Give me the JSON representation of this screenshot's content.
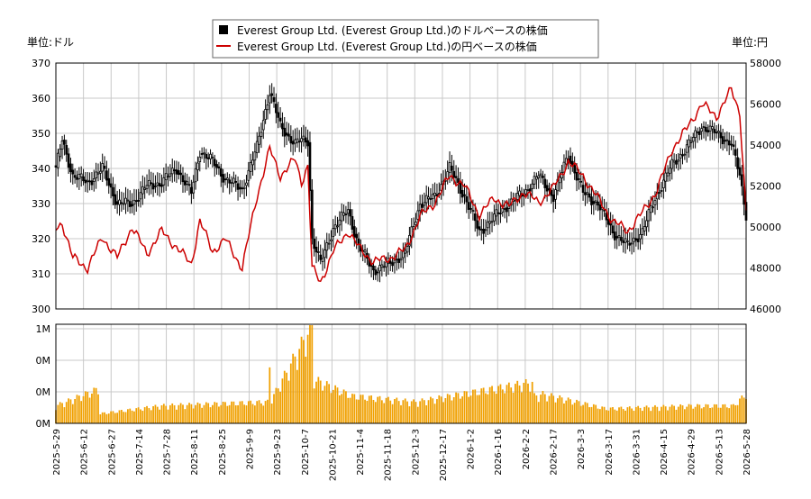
{
  "chart_data": {
    "type": "candlestick-line-bar",
    "legend": {
      "placement": "top-center",
      "entries": [
        {
          "label": "Everest Group Ltd. (Everest Group Ltd.)のドルベースの株価",
          "marker": "square",
          "color": "#000000"
        },
        {
          "label": "Everest Group Ltd. (Everest Group Ltd.)の円ベースの株価",
          "marker": "line",
          "color": "#cc0000"
        }
      ]
    },
    "left_axis": {
      "unit_label": "単位:ドル",
      "ylim": [
        300,
        370
      ],
      "ticks": [
        300,
        310,
        320,
        330,
        340,
        350,
        360,
        370
      ]
    },
    "right_axis": {
      "unit_label": "単位:円",
      "ylim": [
        46000,
        58000
      ],
      "ticks": [
        46000,
        48000,
        50000,
        52000,
        54000,
        56000,
        58000
      ]
    },
    "volume_axis": {
      "tick_labels": [
        "0M",
        "0M",
        "0M",
        "1M"
      ]
    },
    "x_tick_labels": [
      "2025-5-29",
      "2025-6-12",
      "2025-6-27",
      "2025-7-14",
      "2025-7-28",
      "2025-8-11",
      "2025-8-25",
      "2025-9-9",
      "2025-9-23",
      "2025-10-7",
      "2025-10-21",
      "2025-11-4",
      "2025-11-18",
      "2025-12-3",
      "2025-12-17",
      "2026-1-2",
      "2026-1-16",
      "2026-2-2",
      "2026-2-17",
      "2026-3-3",
      "2026-3-17",
      "2026-3-31",
      "2026-4-15",
      "2026-4-29",
      "2026-5-13",
      "2026-5-28"
    ],
    "grid": true,
    "colors": {
      "usd": "#000000",
      "jpy": "#cc0000",
      "volume": "#f0a000",
      "grid": "#c8c8c8"
    },
    "usd_close_anchors": [
      [
        0,
        340
      ],
      [
        3,
        348
      ],
      [
        8,
        338
      ],
      [
        15,
        336
      ],
      [
        22,
        340
      ],
      [
        29,
        330
      ],
      [
        36,
        330
      ],
      [
        43,
        335
      ],
      [
        50,
        336
      ],
      [
        57,
        340
      ],
      [
        64,
        333
      ],
      [
        68,
        345
      ],
      [
        74,
        342
      ],
      [
        80,
        337
      ],
      [
        88,
        334
      ],
      [
        95,
        346
      ],
      [
        101,
        362
      ],
      [
        106,
        352
      ],
      [
        113,
        347
      ],
      [
        116,
        348
      ],
      [
        119,
        348
      ],
      [
        121,
        320
      ],
      [
        125,
        313
      ],
      [
        131,
        323
      ],
      [
        138,
        328
      ],
      [
        143,
        318
      ],
      [
        150,
        311
      ],
      [
        158,
        313
      ],
      [
        165,
        316
      ],
      [
        172,
        330
      ],
      [
        179,
        332
      ],
      [
        186,
        340
      ],
      [
        193,
        332
      ],
      [
        200,
        322
      ],
      [
        207,
        326
      ],
      [
        214,
        330
      ],
      [
        221,
        333
      ],
      [
        228,
        338
      ],
      [
        235,
        332
      ],
      [
        242,
        344
      ],
      [
        249,
        333
      ],
      [
        256,
        330
      ],
      [
        263,
        322
      ],
      [
        270,
        318
      ],
      [
        277,
        322
      ],
      [
        284,
        333
      ],
      [
        291,
        341
      ],
      [
        298,
        346
      ],
      [
        305,
        352
      ],
      [
        312,
        350
      ],
      [
        319,
        347
      ],
      [
        323,
        338
      ],
      [
        326,
        327
      ]
    ],
    "jpy_close_anchors": [
      [
        0,
        49900
      ],
      [
        3,
        50200
      ],
      [
        8,
        48500
      ],
      [
        15,
        48000
      ],
      [
        22,
        49500
      ],
      [
        29,
        48500
      ],
      [
        36,
        50000
      ],
      [
        43,
        48700
      ],
      [
        50,
        49800
      ],
      [
        57,
        49000
      ],
      [
        64,
        48200
      ],
      [
        68,
        50300
      ],
      [
        74,
        48800
      ],
      [
        80,
        49400
      ],
      [
        88,
        48000
      ],
      [
        95,
        51500
      ],
      [
        101,
        53800
      ],
      [
        106,
        52500
      ],
      [
        113,
        53300
      ],
      [
        116,
        52200
      ],
      [
        119,
        53000
      ],
      [
        121,
        48000
      ],
      [
        125,
        47300
      ],
      [
        131,
        48800
      ],
      [
        138,
        49800
      ],
      [
        143,
        49000
      ],
      [
        150,
        48300
      ],
      [
        158,
        48500
      ],
      [
        165,
        48900
      ],
      [
        172,
        50500
      ],
      [
        179,
        51200
      ],
      [
        186,
        52500
      ],
      [
        193,
        52000
      ],
      [
        200,
        50600
      ],
      [
        207,
        51400
      ],
      [
        214,
        51000
      ],
      [
        221,
        51700
      ],
      [
        228,
        51200
      ],
      [
        235,
        51900
      ],
      [
        242,
        53200
      ],
      [
        249,
        52500
      ],
      [
        256,
        51400
      ],
      [
        263,
        50300
      ],
      [
        270,
        49800
      ],
      [
        277,
        50700
      ],
      [
        284,
        51800
      ],
      [
        291,
        53800
      ],
      [
        298,
        54800
      ],
      [
        305,
        56000
      ],
      [
        312,
        55400
      ],
      [
        319,
        56700
      ],
      [
        323,
        55600
      ],
      [
        326,
        50700
      ]
    ],
    "volume_anchors": [
      [
        0,
        0.18
      ],
      [
        20,
        0.35
      ],
      [
        21,
        0.1
      ],
      [
        50,
        0.18
      ],
      [
        100,
        0.22
      ],
      [
        101,
        0.6
      ],
      [
        102,
        0.25
      ],
      [
        121,
        1.0
      ],
      [
        122,
        0.45
      ],
      [
        140,
        0.28
      ],
      [
        170,
        0.22
      ],
      [
        225,
        0.42
      ],
      [
        226,
        0.28
      ],
      [
        230,
        0.3
      ],
      [
        260,
        0.15
      ],
      [
        300,
        0.18
      ],
      [
        320,
        0.18
      ],
      [
        326,
        0.3
      ]
    ]
  }
}
